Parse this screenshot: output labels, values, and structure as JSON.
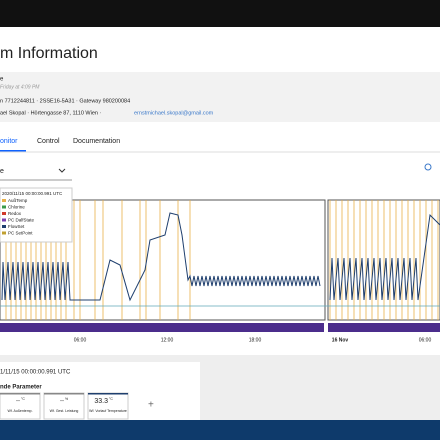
{
  "header": {
    "title": "m Information",
    "subtitle": "e",
    "updated": "Friday at 4:09 PM",
    "ids": "n 7712244811 · 2SSE16-5A31 · Gateway 980200084",
    "owner": "ael Skopal · Hörtengasse 87, 1110 Wien ·",
    "email": "ernstmichael.skopal@gmail.com"
  },
  "tabs": [
    "onitor",
    "Control",
    "Documentation"
  ],
  "dropdown": "e",
  "legend": {
    "timestamp": "2020/11/15 00:00:00.991 UTC",
    "items": [
      "AußTemp",
      "Chlorine",
      "Redox",
      "PC DalfState",
      "FlowSet",
      "PC SetPoint"
    ]
  },
  "x_labels": [
    "06:00",
    "12:00",
    "18:00",
    "16 Nov",
    "06:00"
  ],
  "details": {
    "timestamp": "1/11/15 00:00:00.991 UTC",
    "section": "nde Parameter",
    "cards": [
      {
        "value": "--",
        "unit": "°C",
        "label": "Wf. Außentemp."
      },
      {
        "value": "--",
        "unit": "%",
        "label": "Wf. Gest. Leistung"
      },
      {
        "value": "33.3",
        "unit": "°C",
        "label": "Wf. Vorlauf Temperature"
      }
    ],
    "add": "+"
  }
}
